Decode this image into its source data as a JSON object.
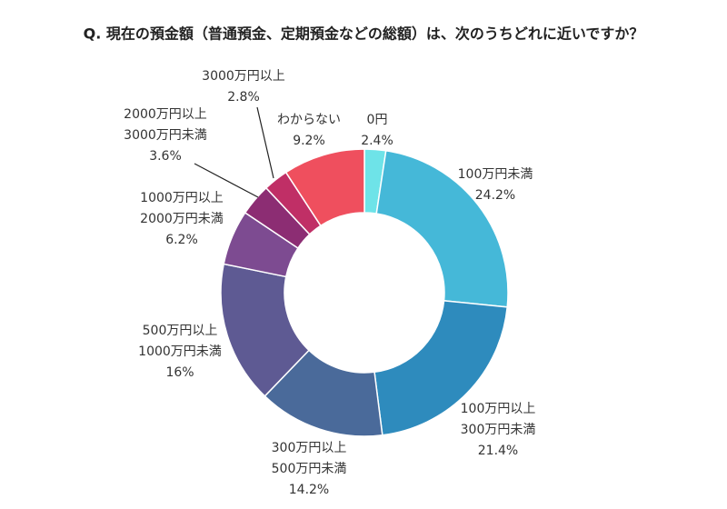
{
  "chart_data": {
    "type": "donut",
    "title": "Q. 現在の預金額（普通預金、定期預金などの総額）は、次のうちどれに近いですか？",
    "categories": [
      [
        "0円"
      ],
      [
        "100万円未満"
      ],
      [
        "100万円以上",
        "300万円未満"
      ],
      [
        "300万円以上",
        "500万円未満"
      ],
      [
        "500万円以上",
        "1000万円未満"
      ],
      [
        "1000万円以上",
        "2000万円未満"
      ],
      [
        "2000万円以上",
        "3000万円未満"
      ],
      [
        "3000万円以上"
      ],
      [
        "わからない"
      ]
    ],
    "values": [
      2.4,
      24.2,
      21.4,
      14.2,
      16,
      6.2,
      3.6,
      2.8,
      9.2
    ],
    "value_labels": [
      "2.4%",
      "24.2%",
      "21.4%",
      "14.2%",
      "16%",
      "6.2%",
      "3.6%",
      "2.8%",
      "9.2%"
    ],
    "colors": [
      "#6ee3e8",
      "#45b8d8",
      "#2e8bbd",
      "#4a6a9a",
      "#5e5a93",
      "#7d4b91",
      "#8c2d73",
      "#c02f66",
      "#ef4f5e"
    ]
  }
}
